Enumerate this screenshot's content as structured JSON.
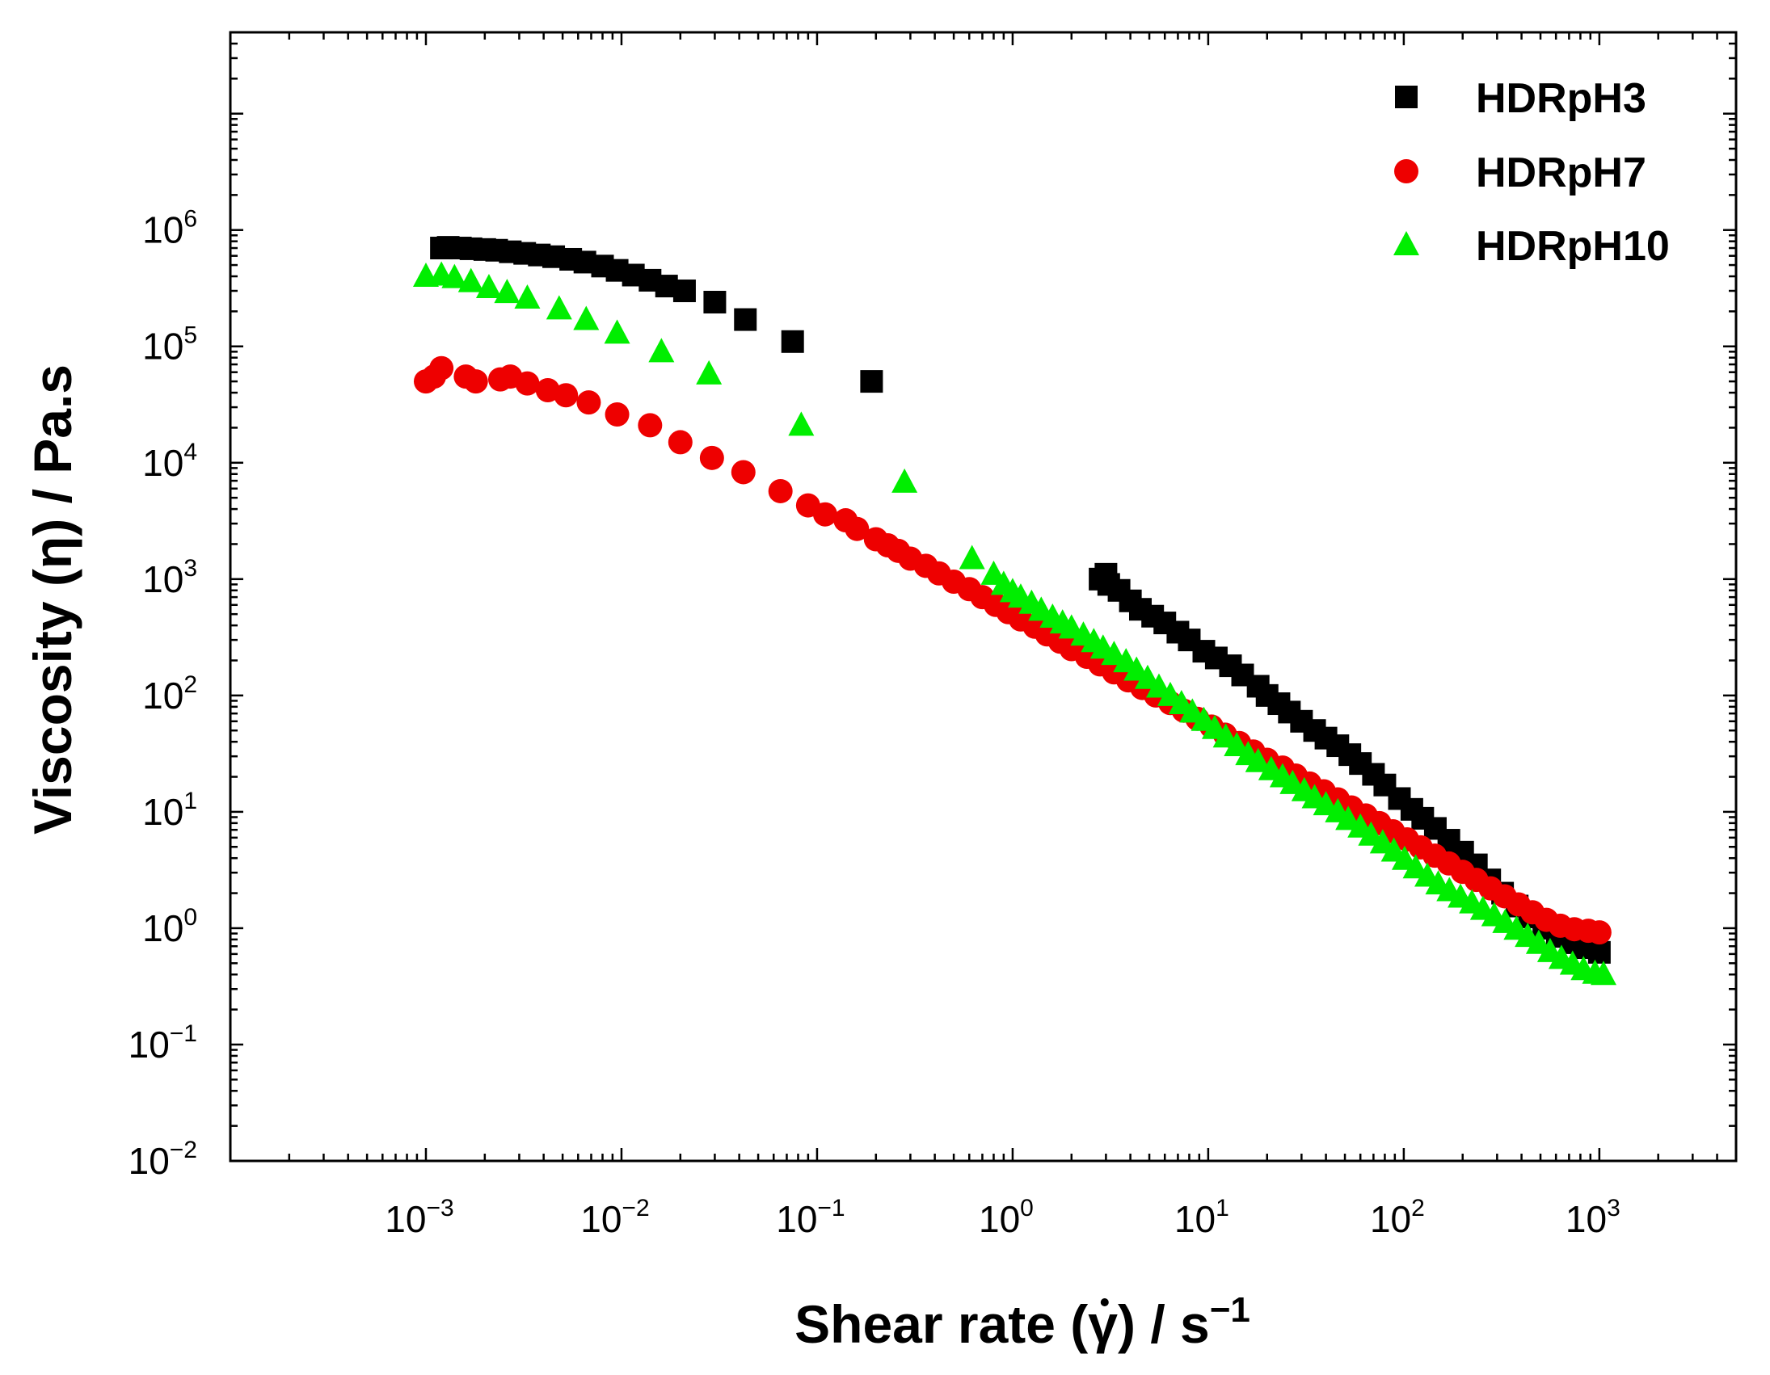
{
  "chart_data": {
    "type": "scatter",
    "xscale": "log",
    "yscale": "log",
    "xlim": [
      0.0001,
      5000
    ],
    "ylim": [
      0.01,
      50000000
    ],
    "xlabel": "Shear rate (γ̇) / s⁻¹",
    "xlabel_parts": {
      "main": "Shear rate (",
      "symbol": "γ",
      "close": ") / s",
      "sup": "−1"
    },
    "ylabel": "Viscosity (η) / Pa.s",
    "x_ticks": [
      {
        "base": "10",
        "exp": "−3",
        "value": 0.001
      },
      {
        "base": "10",
        "exp": "−2",
        "value": 0.01
      },
      {
        "base": "10",
        "exp": "−1",
        "value": 0.1
      },
      {
        "base": "10",
        "exp": "0",
        "value": 1
      },
      {
        "base": "10",
        "exp": "1",
        "value": 10
      },
      {
        "base": "10",
        "exp": "2",
        "value": 100
      },
      {
        "base": "10",
        "exp": "3",
        "value": 1000
      }
    ],
    "y_ticks": [
      {
        "base": "10",
        "exp": "−2",
        "value": 0.01
      },
      {
        "base": "10",
        "exp": "−1",
        "value": 0.1
      },
      {
        "base": "10",
        "exp": "0",
        "value": 1
      },
      {
        "base": "10",
        "exp": "1",
        "value": 10
      },
      {
        "base": "10",
        "exp": "2",
        "value": 100
      },
      {
        "base": "10",
        "exp": "3",
        "value": 1000
      },
      {
        "base": "10",
        "exp": "4",
        "value": 10000
      },
      {
        "base": "10",
        "exp": "5",
        "value": 100000
      },
      {
        "base": "10",
        "exp": "6",
        "value": 1000000
      }
    ],
    "legend_position": "top-right",
    "series": [
      {
        "name": "HDRpH3",
        "marker": "square",
        "color": "#000000",
        "points": [
          [
            0.0012,
            700000
          ],
          [
            0.0013,
            710000
          ],
          [
            0.0015,
            700000
          ],
          [
            0.0017,
            690000
          ],
          [
            0.002,
            680000
          ],
          [
            0.0023,
            670000
          ],
          [
            0.0027,
            650000
          ],
          [
            0.0032,
            630000
          ],
          [
            0.0038,
            610000
          ],
          [
            0.0045,
            590000
          ],
          [
            0.0055,
            560000
          ],
          [
            0.0065,
            530000
          ],
          [
            0.008,
            490000
          ],
          [
            0.0095,
            450000
          ],
          [
            0.0115,
            410000
          ],
          [
            0.014,
            370000
          ],
          [
            0.017,
            330000
          ],
          [
            0.021,
            300000
          ],
          [
            0.03,
            240000
          ],
          [
            0.043,
            170000
          ],
          [
            0.075,
            110000
          ],
          [
            0.19,
            50000
          ],
          [
            2.8,
            1000
          ],
          [
            3.0,
            1100
          ],
          [
            3.1,
            900
          ],
          [
            3.5,
            800
          ],
          [
            4.0,
            650
          ],
          [
            4.5,
            550
          ],
          [
            5.2,
            480
          ],
          [
            6.0,
            420
          ],
          [
            7.0,
            350
          ],
          [
            8.0,
            300
          ],
          [
            9.5,
            240
          ],
          [
            11,
            210
          ],
          [
            13,
            180
          ],
          [
            15,
            150
          ],
          [
            18,
            120
          ],
          [
            20,
            100
          ],
          [
            23,
            85
          ],
          [
            26,
            72
          ],
          [
            30,
            60
          ],
          [
            35,
            50
          ],
          [
            40,
            43
          ],
          [
            46,
            37
          ],
          [
            53,
            31
          ],
          [
            60,
            26
          ],
          [
            70,
            21
          ],
          [
            80,
            17
          ],
          [
            95,
            13
          ],
          [
            110,
            10.5
          ],
          [
            125,
            8.8
          ],
          [
            145,
            7.2
          ],
          [
            170,
            5.7
          ],
          [
            200,
            4.5
          ],
          [
            235,
            3.5
          ],
          [
            275,
            2.6
          ],
          [
            320,
            2.0
          ],
          [
            380,
            1.55
          ],
          [
            440,
            1.25
          ],
          [
            520,
            1.0
          ],
          [
            610,
            0.85
          ],
          [
            720,
            0.75
          ],
          [
            850,
            0.68
          ],
          [
            1000,
            0.62
          ]
        ]
      },
      {
        "name": "HDRpH7",
        "marker": "circle",
        "color": "#ee0000",
        "points": [
          [
            0.001,
            50000
          ],
          [
            0.0011,
            55000
          ],
          [
            0.0012,
            65000
          ],
          [
            0.0016,
            55000
          ],
          [
            0.0018,
            50000
          ],
          [
            0.0024,
            52000
          ],
          [
            0.0027,
            55000
          ],
          [
            0.0033,
            48000
          ],
          [
            0.0042,
            42000
          ],
          [
            0.0052,
            38000
          ],
          [
            0.0068,
            33000
          ],
          [
            0.0095,
            26000
          ],
          [
            0.014,
            21000
          ],
          [
            0.02,
            15000
          ],
          [
            0.029,
            11000
          ],
          [
            0.042,
            8300
          ],
          [
            0.065,
            5700
          ],
          [
            0.09,
            4300
          ],
          [
            0.11,
            3600
          ],
          [
            0.14,
            3200
          ],
          [
            0.16,
            2700
          ],
          [
            0.2,
            2200
          ],
          [
            0.23,
            1950
          ],
          [
            0.26,
            1750
          ],
          [
            0.3,
            1500
          ],
          [
            0.36,
            1300
          ],
          [
            0.42,
            1120
          ],
          [
            0.5,
            950
          ],
          [
            0.6,
            820
          ],
          [
            0.7,
            700
          ],
          [
            0.82,
            600
          ],
          [
            0.95,
            520
          ],
          [
            1.1,
            450
          ],
          [
            1.3,
            390
          ],
          [
            1.5,
            335
          ],
          [
            1.75,
            290
          ],
          [
            2.0,
            250
          ],
          [
            2.4,
            215
          ],
          [
            2.8,
            185
          ],
          [
            3.3,
            158
          ],
          [
            3.9,
            135
          ],
          [
            4.6,
            116
          ],
          [
            5.4,
            100
          ],
          [
            6.4,
            86
          ],
          [
            7.5,
            74
          ],
          [
            8.8,
            63
          ],
          [
            10.4,
            54
          ],
          [
            12.2,
            46
          ],
          [
            14.4,
            39
          ],
          [
            17,
            33
          ],
          [
            20,
            28
          ],
          [
            24,
            24
          ],
          [
            28,
            20.5
          ],
          [
            33,
            17.5
          ],
          [
            39,
            15
          ],
          [
            46,
            12.8
          ],
          [
            54,
            10.9
          ],
          [
            64,
            9.3
          ],
          [
            75,
            8.0
          ],
          [
            88,
            6.8
          ],
          [
            104,
            5.8
          ],
          [
            122,
            4.95
          ],
          [
            144,
            4.2
          ],
          [
            170,
            3.6
          ],
          [
            200,
            3.05
          ],
          [
            235,
            2.6
          ],
          [
            278,
            2.2
          ],
          [
            328,
            1.88
          ],
          [
            386,
            1.6
          ],
          [
            455,
            1.37
          ],
          [
            536,
            1.18
          ],
          [
            632,
            1.05
          ],
          [
            745,
            0.98
          ],
          [
            878,
            0.95
          ],
          [
            1000,
            0.92
          ]
        ]
      },
      {
        "name": "HDRpH10",
        "marker": "triangle",
        "color": "#00ee00",
        "points": [
          [
            0.001,
            400000
          ],
          [
            0.0012,
            410000
          ],
          [
            0.0014,
            390000
          ],
          [
            0.0017,
            360000
          ],
          [
            0.0021,
            320000
          ],
          [
            0.0026,
            290000
          ],
          [
            0.0033,
            260000
          ],
          [
            0.0048,
            210000
          ],
          [
            0.0066,
            170000
          ],
          [
            0.0095,
            130000
          ],
          [
            0.016,
            90000
          ],
          [
            0.028,
            58000
          ],
          [
            0.083,
            21000
          ],
          [
            0.28,
            6800
          ],
          [
            0.62,
            1500
          ],
          [
            0.8,
            1100
          ],
          [
            0.9,
            900
          ],
          [
            1.0,
            780
          ],
          [
            1.1,
            700
          ],
          [
            1.25,
            620
          ],
          [
            1.4,
            540
          ],
          [
            1.6,
            470
          ],
          [
            1.8,
            420
          ],
          [
            2.0,
            380
          ],
          [
            2.3,
            330
          ],
          [
            2.6,
            290
          ],
          [
            2.9,
            255
          ],
          [
            3.3,
            225
          ],
          [
            3.8,
            195
          ],
          [
            4.3,
            165
          ],
          [
            4.9,
            140
          ],
          [
            5.6,
            118
          ],
          [
            6.4,
            100
          ],
          [
            7.3,
            85
          ],
          [
            8.3,
            72
          ],
          [
            9.5,
            61
          ],
          [
            10.8,
            52
          ],
          [
            12.3,
            44
          ],
          [
            14,
            37
          ],
          [
            16,
            31
          ],
          [
            18,
            27
          ],
          [
            21,
            23
          ],
          [
            24,
            20
          ],
          [
            27,
            17.5
          ],
          [
            31,
            15.2
          ],
          [
            35,
            13.2
          ],
          [
            40,
            11.5
          ],
          [
            46,
            10
          ],
          [
            52,
            8.6
          ],
          [
            60,
            7.4
          ],
          [
            68,
            6.3
          ],
          [
            78,
            5.4
          ],
          [
            89,
            4.6
          ],
          [
            101,
            3.9
          ],
          [
            115,
            3.3
          ],
          [
            132,
            2.8
          ],
          [
            150,
            2.4
          ],
          [
            171,
            2.1
          ],
          [
            195,
            1.85
          ],
          [
            223,
            1.65
          ],
          [
            254,
            1.45
          ],
          [
            290,
            1.28
          ],
          [
            330,
            1.12
          ],
          [
            377,
            0.98
          ],
          [
            430,
            0.85
          ],
          [
            490,
            0.74
          ],
          [
            560,
            0.63
          ],
          [
            640,
            0.55
          ],
          [
            730,
            0.49
          ],
          [
            830,
            0.44
          ],
          [
            950,
            0.41
          ],
          [
            1050,
            0.4
          ]
        ]
      }
    ]
  }
}
